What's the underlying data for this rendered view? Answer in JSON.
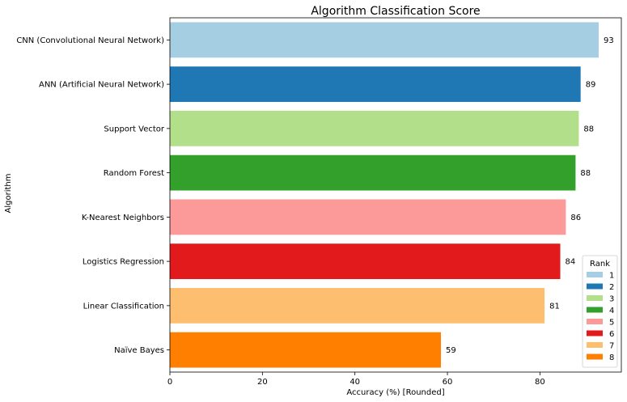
{
  "chart_data": {
    "type": "bar",
    "orientation": "horizontal",
    "title": "Algorithm Classification Score",
    "xlabel": "Accuracy (%) [Rounded]",
    "ylabel": "Algorithm",
    "xlim": [
      0,
      97.6
    ],
    "xticks": [
      "0",
      "20",
      "40",
      "60",
      "80"
    ],
    "grid": false,
    "categories": [
      "CNN (Convolutional Neural Network)",
      "ANN (Artificial Neural Network)",
      "Support Vector",
      "Random Forest",
      "K-Nearest Neighbors",
      "Logistics Regression",
      "Linear Classification",
      "Naïve Bayes"
    ],
    "values": [
      92.7,
      88.8,
      88.4,
      87.7,
      85.6,
      84.4,
      81.0,
      58.6
    ],
    "data_labels": [
      "93",
      "89",
      "88",
      "88",
      "86",
      "84",
      "81",
      "59"
    ],
    "colors": [
      "#a6cee3",
      "#1f78b4",
      "#b2df8a",
      "#33a02c",
      "#fb9a99",
      "#e31a1c",
      "#fdbf6f",
      "#ff7f00"
    ],
    "legend": {
      "title": "Rank",
      "placement": "lower-right",
      "entries": [
        "1",
        "2",
        "3",
        "4",
        "5",
        "6",
        "7",
        "8"
      ]
    }
  }
}
